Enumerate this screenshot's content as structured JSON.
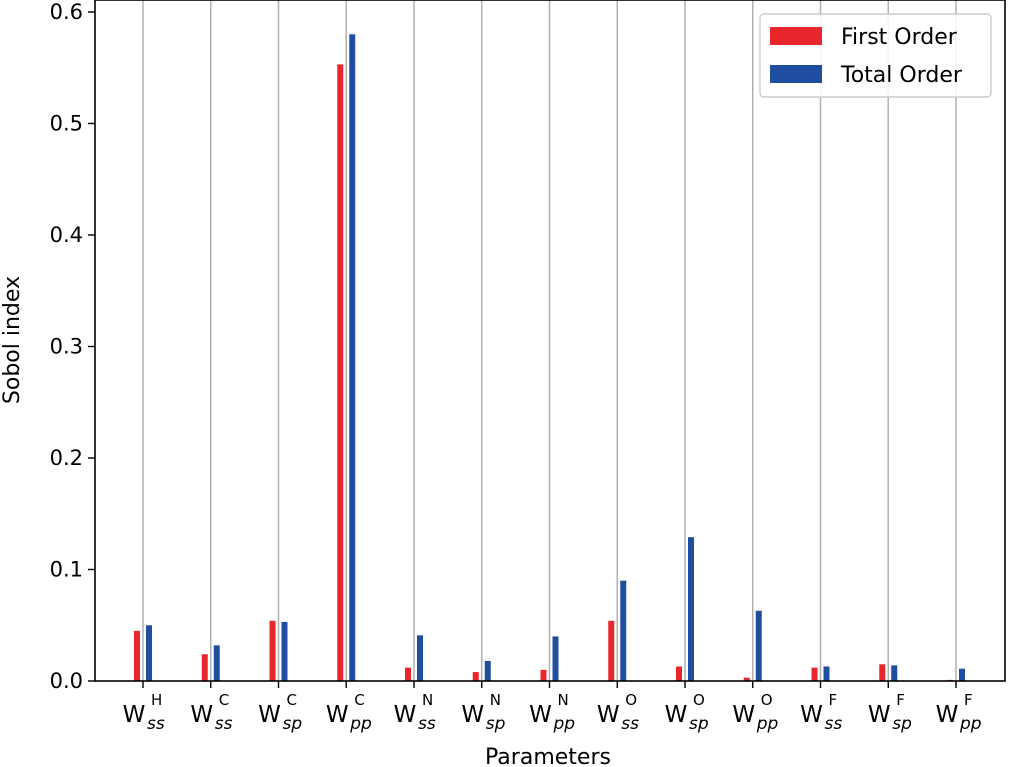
{
  "chart_data": {
    "type": "bar",
    "xlabel": "Parameters",
    "ylabel": "Sobol index",
    "ylim": [
      0,
      0.6
    ],
    "yticks": [
      "0.0",
      "0.1",
      "0.2",
      "0.3",
      "0.4",
      "0.5",
      "0.6"
    ],
    "grid": "vertical",
    "legend_position": "top-right",
    "categories": [
      {
        "base": "W",
        "sub": "ss",
        "sup": "H"
      },
      {
        "base": "W",
        "sub": "ss",
        "sup": "C"
      },
      {
        "base": "W",
        "sub": "sp",
        "sup": "C"
      },
      {
        "base": "W",
        "sub": "pp",
        "sup": "C"
      },
      {
        "base": "W",
        "sub": "ss",
        "sup": "N"
      },
      {
        "base": "W",
        "sub": "sp",
        "sup": "N"
      },
      {
        "base": "W",
        "sub": "pp",
        "sup": "N"
      },
      {
        "base": "W",
        "sub": "ss",
        "sup": "O"
      },
      {
        "base": "W",
        "sub": "sp",
        "sup": "O"
      },
      {
        "base": "W",
        "sub": "pp",
        "sup": "O"
      },
      {
        "base": "W",
        "sub": "ss",
        "sup": "F"
      },
      {
        "base": "W",
        "sub": "sp",
        "sup": "F"
      },
      {
        "base": "W",
        "sub": "pp",
        "sup": "F"
      }
    ],
    "series": [
      {
        "name": "First Order",
        "color": "#e8262b",
        "values": [
          0.045,
          0.024,
          0.054,
          0.553,
          0.012,
          0.008,
          0.01,
          0.054,
          0.013,
          0.003,
          0.012,
          0.015,
          0.001
        ]
      },
      {
        "name": "Total Order",
        "color": "#1f4ea1",
        "values": [
          0.05,
          0.032,
          0.053,
          0.58,
          0.041,
          0.018,
          0.04,
          0.09,
          0.129,
          0.063,
          0.013,
          0.014,
          0.011
        ]
      }
    ]
  }
}
